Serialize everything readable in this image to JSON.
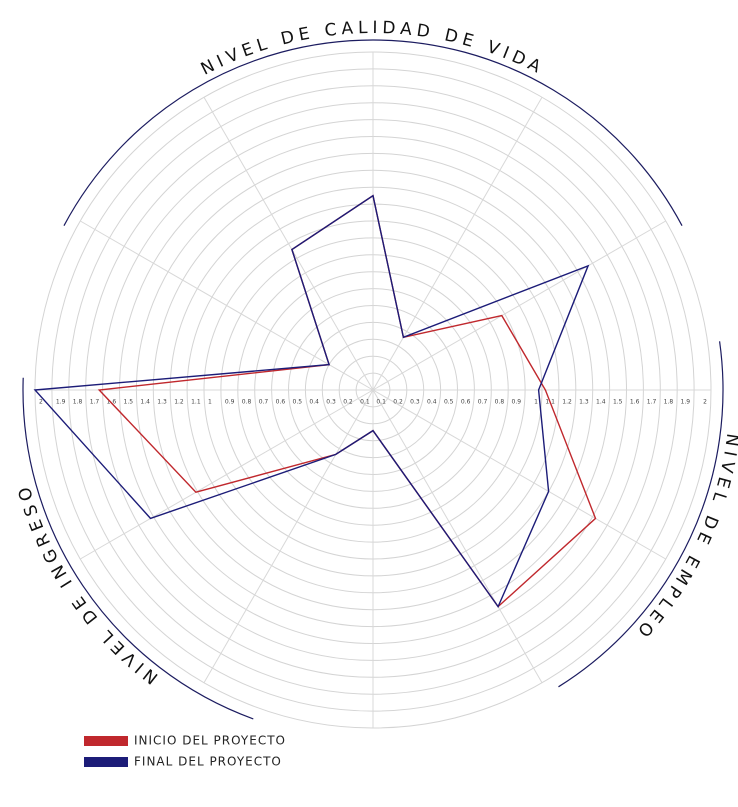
{
  "chart_data": {
    "type": "radar",
    "axis_labels": [
      "NIVEL DE CALIDAD DE VIDA",
      "NIVEL DE EMPLEO",
      "NIVEL DE INGRESO"
    ],
    "rlim": [
      0,
      2.0
    ],
    "rticks": [
      0.1,
      0.2,
      0.3,
      0.4,
      0.5,
      0.6,
      0.7,
      0.8,
      0.9,
      1.0,
      1.1,
      1.2,
      1.3,
      1.4,
      1.5,
      1.6,
      1.7,
      1.8,
      1.9,
      2.0
    ],
    "grid": true,
    "series": [
      {
        "name": "INICIO DEL PROYECTO",
        "color": "#c0282d",
        "values": [
          1.15,
          0.36,
          0.88,
          1.02,
          1.52,
          1.48,
          0.24,
          0.44,
          1.21,
          1.62,
          0.3,
          0.96
        ]
      },
      {
        "name": "FINAL DEL PROYECTO",
        "color": "#1c1c78",
        "values": [
          1.15,
          0.36,
          1.47,
          0.98,
          1.2,
          1.48,
          0.24,
          0.44,
          1.52,
          2.0,
          0.3,
          0.96
        ]
      }
    ]
  }
}
